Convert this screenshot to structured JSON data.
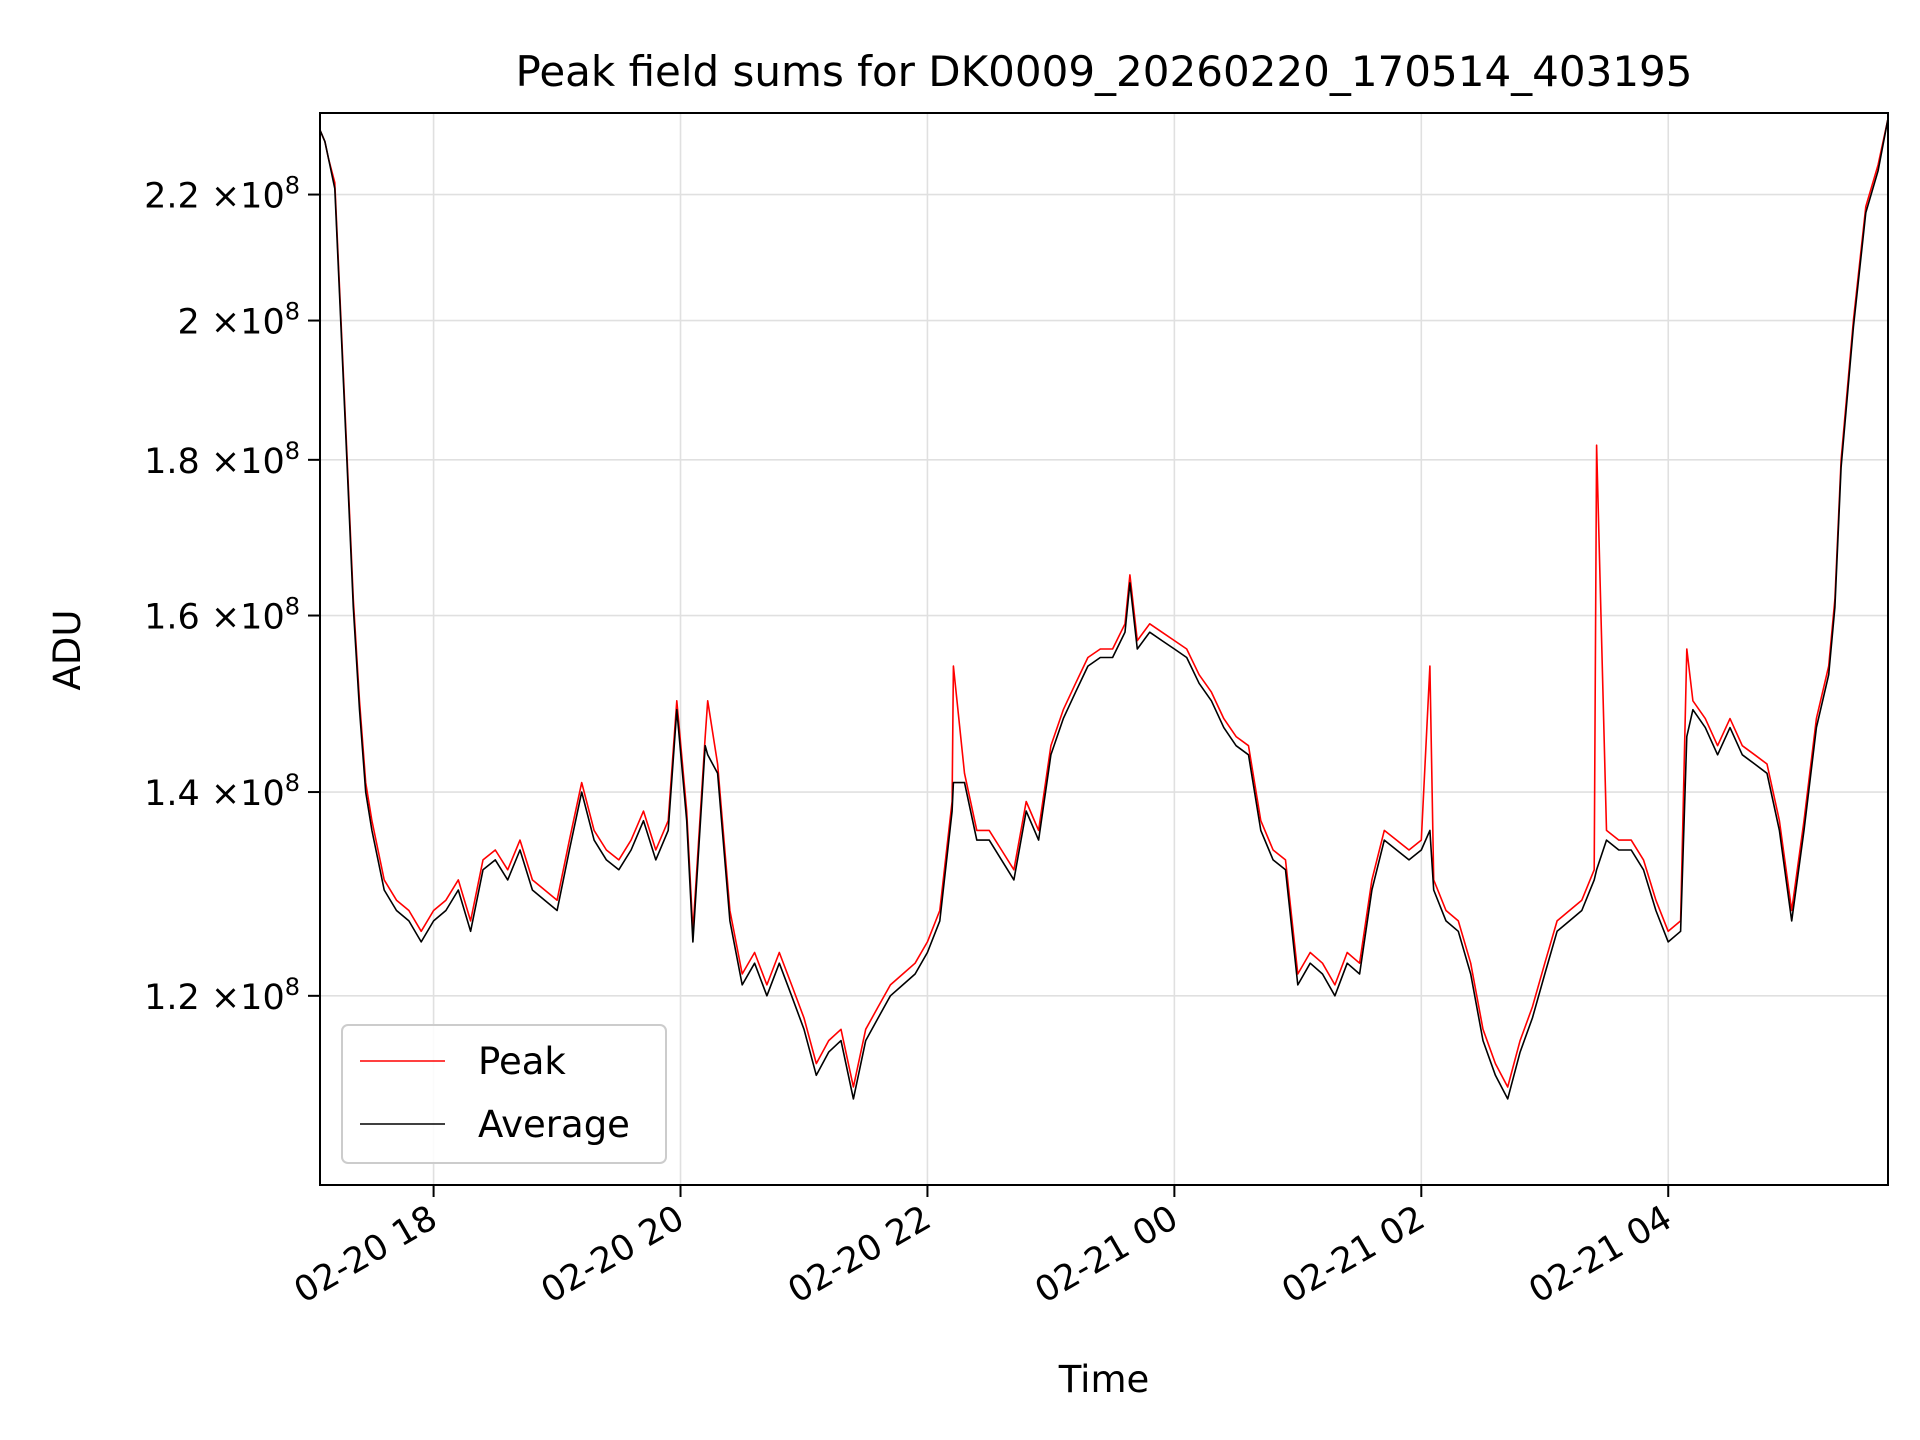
{
  "chart_data": {
    "type": "line",
    "title": "Peak field sums for DK0009_20260220_170514_403195",
    "xlabel": "Time",
    "ylabel": "ADU",
    "yscale": "log",
    "ylim": [
      104000000,
      234000000
    ],
    "xlim_hours_from_2026-02-20_00:00": [
      17.08,
      29.78
    ],
    "grid": true,
    "legend_position": "lower-left",
    "x_ticks": [
      {
        "hour": 18,
        "label": "02-20 18"
      },
      {
        "hour": 20,
        "label": "02-20 20"
      },
      {
        "hour": 22,
        "label": "02-20 22"
      },
      {
        "hour": 24,
        "label": "02-21 00"
      },
      {
        "hour": 26,
        "label": "02-21 02"
      },
      {
        "hour": 28,
        "label": "02-21 04"
      }
    ],
    "y_ticks": [
      {
        "value": 120000000,
        "mantissa": "1.2",
        "exponent": "8"
      },
      {
        "value": 140000000,
        "mantissa": "1.4",
        "exponent": "8"
      },
      {
        "value": 160000000,
        "mantissa": "1.6",
        "exponent": "8"
      },
      {
        "value": 180000000,
        "mantissa": "1.8",
        "exponent": "8"
      },
      {
        "value": 200000000,
        "mantissa": "2",
        "exponent": "8"
      },
      {
        "value": 220000000,
        "mantissa": "2.2",
        "exponent": "8"
      }
    ],
    "times_label_unit": "×10",
    "series": [
      {
        "name": "Peak",
        "color": "#ff0000",
        "x_hours": [
          17.08,
          17.12,
          17.15,
          17.2,
          17.25,
          17.3,
          17.35,
          17.4,
          17.45,
          17.5,
          17.55,
          17.6,
          17.7,
          17.8,
          17.9,
          18.0,
          18.1,
          18.2,
          18.3,
          18.4,
          18.5,
          18.6,
          18.7,
          18.8,
          18.9,
          19.0,
          19.1,
          19.2,
          19.3,
          19.4,
          19.5,
          19.6,
          19.7,
          19.8,
          19.9,
          19.97,
          20.05,
          20.1,
          20.2,
          20.22,
          20.3,
          20.4,
          20.5,
          20.6,
          20.7,
          20.8,
          20.9,
          21.0,
          21.1,
          21.2,
          21.3,
          21.4,
          21.5,
          21.6,
          21.7,
          21.8,
          21.9,
          22.0,
          22.1,
          22.2,
          22.21,
          22.3,
          22.4,
          22.5,
          22.6,
          22.7,
          22.8,
          22.9,
          23.0,
          23.1,
          23.2,
          23.3,
          23.4,
          23.5,
          23.6,
          23.64,
          23.7,
          23.8,
          23.9,
          24.0,
          24.1,
          24.2,
          24.3,
          24.4,
          24.5,
          24.6,
          24.7,
          24.8,
          24.9,
          25.0,
          25.1,
          25.2,
          25.3,
          25.4,
          25.5,
          25.6,
          25.7,
          25.8,
          25.9,
          26.0,
          26.07,
          26.1,
          26.2,
          26.3,
          26.4,
          26.5,
          26.6,
          26.7,
          26.8,
          26.9,
          27.0,
          27.1,
          27.2,
          27.3,
          27.4,
          27.42,
          27.5,
          27.6,
          27.7,
          27.8,
          27.9,
          28.0,
          28.1,
          28.15,
          28.2,
          28.3,
          28.4,
          28.5,
          28.6,
          28.7,
          28.8,
          28.9,
          29.0,
          29.1,
          29.2,
          29.3,
          29.35,
          29.4,
          29.5,
          29.6,
          29.7,
          29.78
        ],
        "values": [
          231000000,
          229000000,
          226000000,
          222000000,
          200000000,
          180000000,
          162000000,
          150000000,
          141000000,
          137000000,
          134000000,
          131000000,
          129000000,
          128000000,
          126000000,
          128000000,
          129000000,
          131000000,
          127000000,
          133000000,
          134000000,
          132000000,
          135000000,
          131000000,
          130000000,
          129000000,
          135000000,
          141000000,
          136000000,
          134000000,
          133000000,
          135000000,
          138000000,
          134000000,
          137000000,
          150000000,
          138000000,
          126000000,
          146000000,
          150000000,
          143000000,
          128000000,
          122000000,
          124000000,
          121000000,
          124000000,
          121000000,
          118000000,
          114000000,
          116000000,
          117000000,
          112000000,
          117000000,
          119000000,
          121000000,
          122000000,
          123000000,
          125000000,
          128000000,
          139000000,
          154000000,
          142000000,
          136000000,
          136000000,
          134000000,
          132000000,
          139000000,
          136000000,
          145000000,
          149000000,
          152000000,
          155000000,
          156000000,
          156000000,
          159000000,
          165000000,
          157000000,
          159000000,
          158000000,
          157000000,
          156000000,
          153000000,
          151000000,
          148000000,
          146000000,
          145000000,
          137000000,
          134000000,
          133000000,
          122000000,
          124000000,
          123000000,
          121000000,
          124000000,
          123000000,
          131000000,
          136000000,
          135000000,
          134000000,
          135000000,
          154000000,
          131000000,
          128000000,
          127000000,
          123000000,
          117000000,
          114000000,
          112000000,
          116000000,
          119000000,
          123000000,
          127000000,
          128000000,
          129000000,
          132000000,
          182000000,
          136000000,
          135000000,
          135000000,
          133000000,
          129000000,
          126000000,
          127000000,
          156000000,
          150000000,
          148000000,
          145000000,
          148000000,
          145000000,
          144000000,
          143000000,
          137000000,
          128000000,
          137000000,
          148000000,
          154000000,
          162000000,
          180000000,
          200000000,
          218000000,
          225000000,
          233000000
        ]
      },
      {
        "name": "Average",
        "color": "#000000",
        "x_hours": [
          17.08,
          17.12,
          17.15,
          17.2,
          17.25,
          17.3,
          17.35,
          17.4,
          17.45,
          17.5,
          17.55,
          17.6,
          17.7,
          17.8,
          17.9,
          18.0,
          18.1,
          18.2,
          18.3,
          18.4,
          18.5,
          18.6,
          18.7,
          18.8,
          18.9,
          19.0,
          19.1,
          19.2,
          19.3,
          19.4,
          19.5,
          19.6,
          19.7,
          19.8,
          19.9,
          19.97,
          20.05,
          20.1,
          20.2,
          20.22,
          20.3,
          20.4,
          20.5,
          20.6,
          20.7,
          20.8,
          20.9,
          21.0,
          21.1,
          21.2,
          21.3,
          21.4,
          21.5,
          21.6,
          21.7,
          21.8,
          21.9,
          22.0,
          22.1,
          22.2,
          22.21,
          22.3,
          22.4,
          22.5,
          22.6,
          22.7,
          22.8,
          22.9,
          23.0,
          23.1,
          23.2,
          23.3,
          23.4,
          23.5,
          23.6,
          23.64,
          23.7,
          23.8,
          23.9,
          24.0,
          24.1,
          24.2,
          24.3,
          24.4,
          24.5,
          24.6,
          24.7,
          24.8,
          24.9,
          25.0,
          25.1,
          25.2,
          25.3,
          25.4,
          25.5,
          25.6,
          25.7,
          25.8,
          25.9,
          26.0,
          26.07,
          26.1,
          26.2,
          26.3,
          26.4,
          26.5,
          26.6,
          26.7,
          26.8,
          26.9,
          27.0,
          27.1,
          27.2,
          27.3,
          27.4,
          27.42,
          27.5,
          27.6,
          27.7,
          27.8,
          27.9,
          28.0,
          28.1,
          28.15,
          28.2,
          28.3,
          28.4,
          28.5,
          28.6,
          28.7,
          28.8,
          28.9,
          29.0,
          29.1,
          29.2,
          29.3,
          29.35,
          29.4,
          29.5,
          29.6,
          29.7,
          29.78
        ],
        "values": [
          231000000,
          229000000,
          226000000,
          221000000,
          199000000,
          179000000,
          161000000,
          149000000,
          140000000,
          136000000,
          133000000,
          130000000,
          128000000,
          127000000,
          125000000,
          127000000,
          128000000,
          130000000,
          126000000,
          132000000,
          133000000,
          131000000,
          134000000,
          130000000,
          129000000,
          128000000,
          134000000,
          140000000,
          135000000,
          133000000,
          132000000,
          134000000,
          137000000,
          133000000,
          136000000,
          149000000,
          137000000,
          125000000,
          145000000,
          144000000,
          142000000,
          127000000,
          121000000,
          123000000,
          120000000,
          123000000,
          120000000,
          117000000,
          113000000,
          115000000,
          116000000,
          111000000,
          116000000,
          118000000,
          120000000,
          121000000,
          122000000,
          124000000,
          127000000,
          138000000,
          141000000,
          141000000,
          135000000,
          135000000,
          133000000,
          131000000,
          138000000,
          135000000,
          144000000,
          148000000,
          151000000,
          154000000,
          155000000,
          155000000,
          158000000,
          164000000,
          156000000,
          158000000,
          157000000,
          156000000,
          155000000,
          152000000,
          150000000,
          147000000,
          145000000,
          144000000,
          136000000,
          133000000,
          132000000,
          121000000,
          123000000,
          122000000,
          120000000,
          123000000,
          122000000,
          130000000,
          135000000,
          134000000,
          133000000,
          134000000,
          136000000,
          130000000,
          127000000,
          126000000,
          122000000,
          116000000,
          113000000,
          111000000,
          115000000,
          118000000,
          122000000,
          126000000,
          127000000,
          128000000,
          131000000,
          132000000,
          135000000,
          134000000,
          134000000,
          132000000,
          128000000,
          125000000,
          126000000,
          146000000,
          149000000,
          147000000,
          144000000,
          147000000,
          144000000,
          143000000,
          142000000,
          136000000,
          127000000,
          136000000,
          147000000,
          153000000,
          161000000,
          179000000,
          199000000,
          217000000,
          224000000,
          233000000
        ]
      }
    ]
  }
}
